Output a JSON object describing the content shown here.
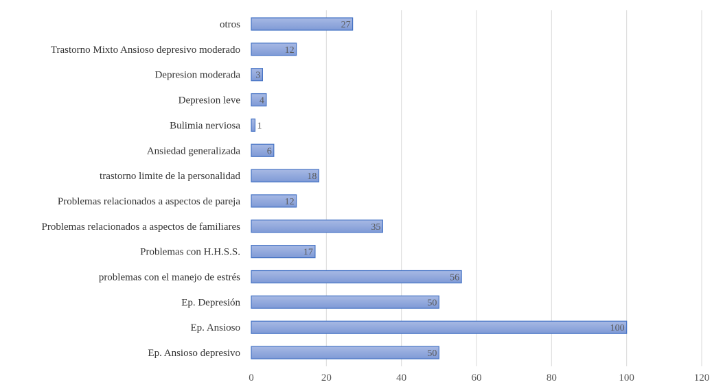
{
  "chart_data": {
    "type": "bar",
    "orientation": "horizontal",
    "categories": [
      "otros",
      "Trastorno Mixto Ansioso depresivo moderado",
      "Depresion moderada",
      "Depresion leve",
      "Bulimia nerviosa",
      "Ansiedad generalizada",
      "trastorno limite de la personalidad",
      "Problemas relacionados a aspectos de pareja",
      "Problemas relacionados a aspectos de familiares",
      "Problemas con H.H.S.S.",
      "problemas con el manejo de estrés",
      "Ep. Depresión",
      "Ep. Ansioso",
      "Ep. Ansioso depresivo"
    ],
    "values": [
      27,
      12,
      3,
      4,
      1,
      6,
      18,
      12,
      35,
      17,
      56,
      50,
      100,
      50
    ],
    "data_labels": [
      "27",
      "12",
      "3",
      "4",
      "1",
      "6",
      "18",
      "12",
      "35",
      "17",
      "56",
      "50",
      "100",
      "50"
    ],
    "xlim": [
      0,
      120
    ],
    "xticks": [
      0,
      20,
      40,
      60,
      80,
      100,
      120
    ],
    "xtick_labels": [
      "0",
      "20",
      "40",
      "60",
      "80",
      "100",
      "120"
    ],
    "title": "",
    "xlabel": "",
    "ylabel": "",
    "grid": "vertical",
    "legend": "none",
    "colors": {
      "bar_fill_top": "#a7b9e4",
      "bar_fill_bottom": "#7f9ad6",
      "bar_stroke": "#4472c4",
      "grid": "#d9d9d9"
    }
  }
}
